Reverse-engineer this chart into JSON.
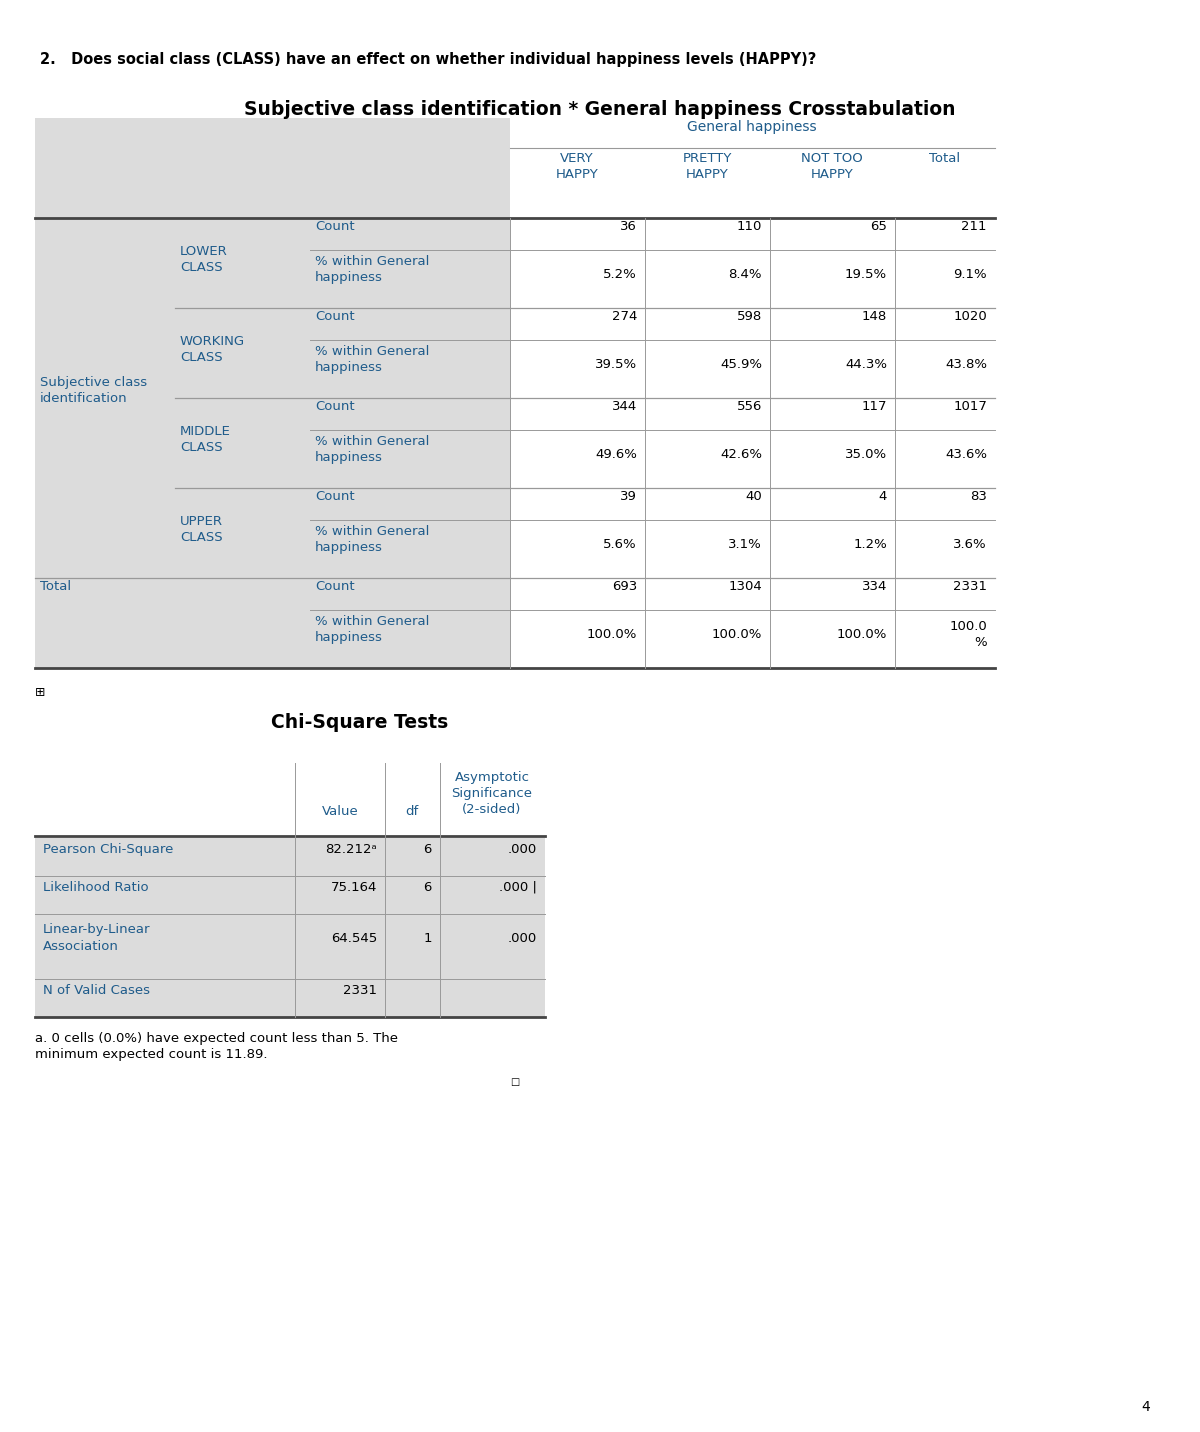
{
  "question": "2.   Does social class (CLASS) have an effect on whether individual happiness levels (HAPPY)?",
  "crosstab_title": "Subjective class identification * General happiness Crosstabulation",
  "gen_happiness_label": "General happiness",
  "header_color": "#1F5C8B",
  "bg_grey": "#DCDCDC",
  "bg_white": "#FFFFFF",
  "line_color": "#999999",
  "thick_line_color": "#444444",
  "page_number": "4",
  "crosstab_data": {
    "col_headers": [
      "VERY\nHAPPY",
      "PRETTY\nHAPPY",
      "NOT TOO\nHAPPY",
      "Total"
    ],
    "groups": [
      {
        "group_label": "Subjective class\nidentification",
        "class_label": "LOWER\nCLASS",
        "count": [
          "36",
          "110",
          "65",
          "211"
        ],
        "pct": [
          "5.2%",
          "8.4%",
          "19.5%",
          "9.1%"
        ]
      },
      {
        "group_label": "",
        "class_label": "WORKING\nCLASS",
        "count": [
          "274",
          "598",
          "148",
          "1020"
        ],
        "pct": [
          "39.5%",
          "45.9%",
          "44.3%",
          "43.8%"
        ]
      },
      {
        "group_label": "",
        "class_label": "MIDDLE\nCLASS",
        "count": [
          "344",
          "556",
          "117",
          "1017"
        ],
        "pct": [
          "49.6%",
          "42.6%",
          "35.0%",
          "43.6%"
        ]
      },
      {
        "group_label": "",
        "class_label": "UPPER\nCLASS",
        "count": [
          "39",
          "40",
          "4",
          "83"
        ],
        "pct": [
          "5.6%",
          "3.1%",
          "1.2%",
          "3.6%"
        ]
      }
    ],
    "total_count": [
      "693",
      "1304",
      "334",
      "2331"
    ],
    "total_pct": [
      "100.0%",
      "100.0%",
      "100.0%",
      "100.0\n%"
    ]
  },
  "chisq_data": {
    "title": "Chi-Square Tests",
    "rows": [
      {
        "label": "Pearson Chi-Square",
        "value": "82.212ᵃ",
        "df": "6",
        "sig": ".000"
      },
      {
        "label": "Likelihood Ratio",
        "value": "75.164",
        "df": "6",
        "sig": ".000 |"
      },
      {
        "label": "Linear-by-Linear\nAssociation",
        "value": "64.545",
        "df": "1",
        "sig": ".000"
      },
      {
        "label": "N of Valid Cases",
        "value": "2331",
        "df": "",
        "sig": ""
      }
    ],
    "footnote": "a. 0 cells (0.0%) have expected count less than 5. The\nminimum expected count is 11.89."
  }
}
